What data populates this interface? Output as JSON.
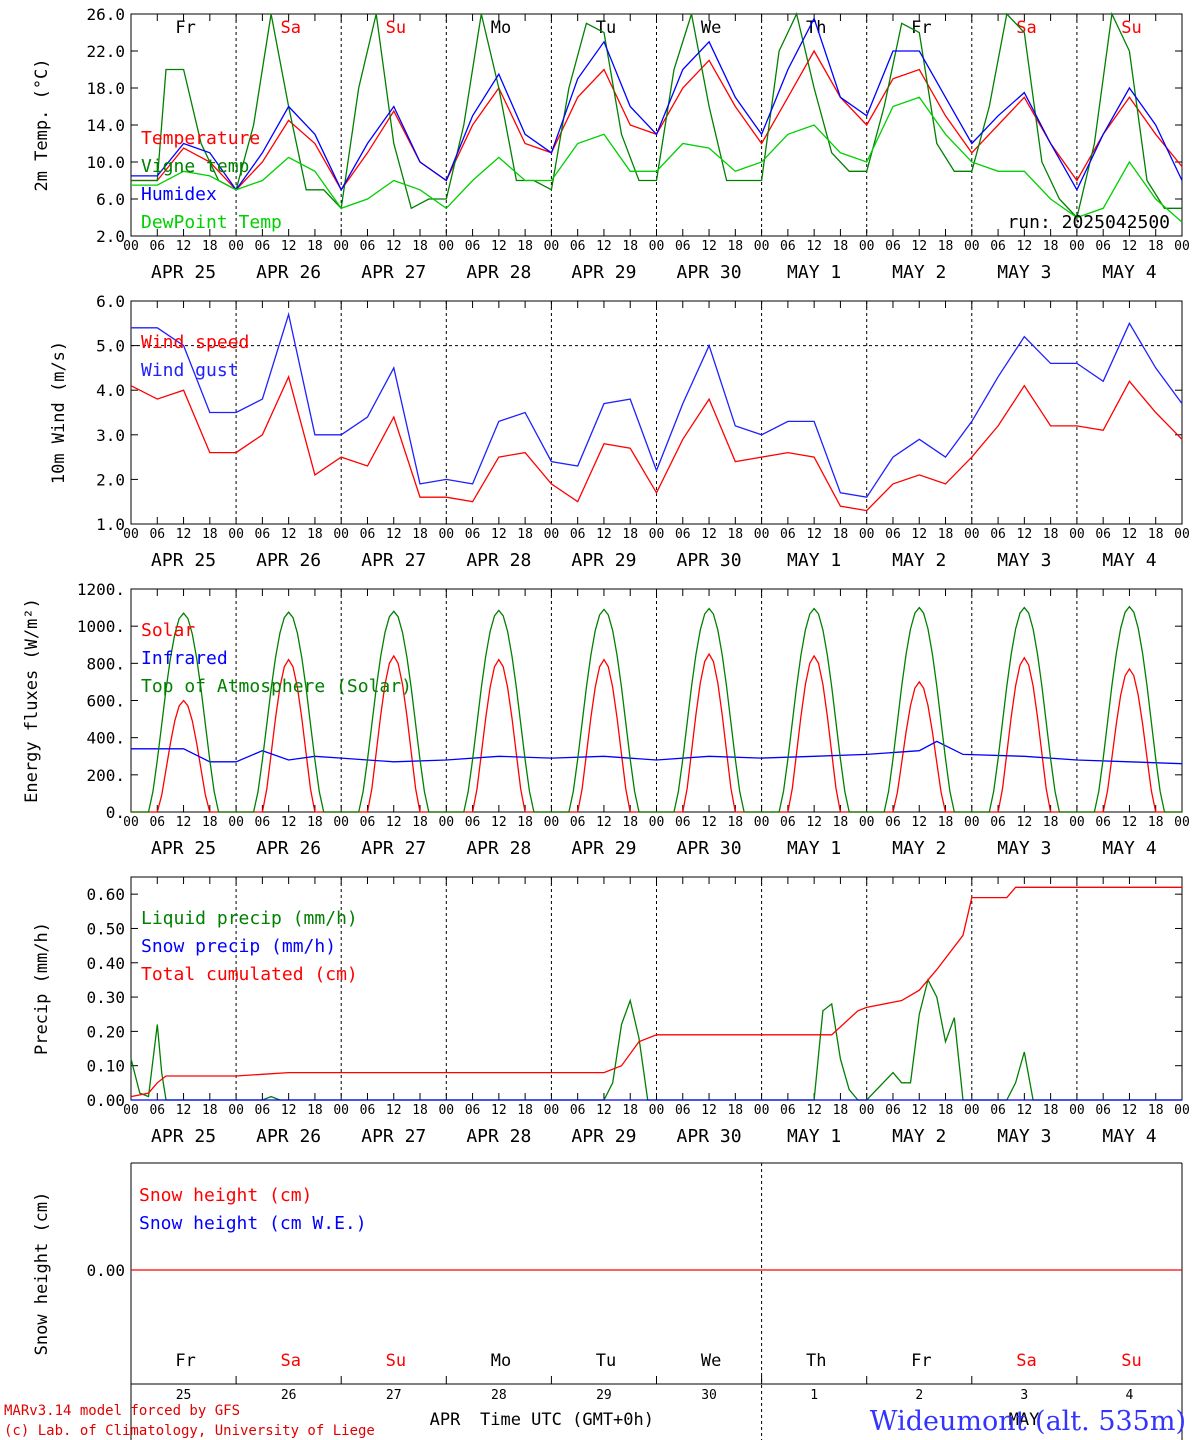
{
  "colors": {
    "red": "#ff0000",
    "green": "#008000",
    "blue": "#0000ff",
    "lightgreen": "#00d000",
    "wind_blue": "#2020ff",
    "site": "#3333ff"
  },
  "days": [
    "Fr",
    "Sa",
    "Su",
    "Mo",
    "Tu",
    "We",
    "Th",
    "Fr",
    "Sa",
    "Su"
  ],
  "weekend_days": [
    1,
    2,
    8,
    9
  ],
  "dates": [
    "APR 25",
    "APR 26",
    "APR 27",
    "APR 28",
    "APR 29",
    "APR 30",
    "MAY  1",
    "MAY  2",
    "MAY  3",
    "MAY  4"
  ],
  "hour_ticks": [
    "00",
    "06",
    "12",
    "18"
  ],
  "last_tick": "00",
  "bottom_day_numbers": [
    "25",
    "26",
    "27",
    "28",
    "29",
    "30",
    "1",
    "2",
    "3",
    "4"
  ],
  "bottom_months": {
    "left": "APR",
    "right": "MAY"
  },
  "footer": {
    "model": "MARv3.14 model forced by GFS",
    "credit": "(c) Lab. of Climatology, University of Liege",
    "xlabel": "Time UTC (GMT+0h)",
    "site": "Wideumont (alt. 535m)"
  },
  "chart_data": [
    {
      "type": "line",
      "ylabel": "2m Temp. (°C)",
      "ylim": [
        2.0,
        26.0
      ],
      "yticks": [
        "2.0",
        "6.0",
        "10.0",
        "14.0",
        "18.0",
        "22.0",
        "26.0"
      ],
      "annotation": "run: 2025042500",
      "x_unit": "hours since APR 25 00 UTC",
      "series": [
        {
          "name": "Temperature",
          "color": "red",
          "x": [
            0,
            6,
            12,
            18,
            24,
            30,
            36,
            42,
            48,
            54,
            60,
            66,
            72,
            78,
            84,
            90,
            96,
            102,
            108,
            114,
            120,
            126,
            132,
            138,
            144,
            150,
            156,
            162,
            168,
            174,
            180,
            186,
            192,
            198,
            204,
            210,
            216,
            222,
            228,
            234,
            240
          ],
          "y": [
            8,
            8,
            11.5,
            10,
            7,
            10,
            14.5,
            12,
            7,
            11,
            15.5,
            10,
            8,
            14,
            18,
            12,
            11,
            17,
            20,
            14,
            13,
            18,
            21,
            16,
            12,
            17,
            22,
            17,
            14,
            19,
            20,
            15,
            11,
            14,
            17,
            12,
            8,
            13,
            17,
            13,
            9.5
          ]
        },
        {
          "name": "Vigne temp",
          "color": "green",
          "x": [
            0,
            6,
            8,
            12,
            16,
            20,
            24,
            28,
            32,
            36,
            40,
            44,
            48,
            52,
            56,
            60,
            64,
            68,
            72,
            76,
            80,
            84,
            88,
            92,
            96,
            100,
            104,
            108,
            112,
            116,
            120,
            124,
            128,
            132,
            136,
            140,
            144,
            148,
            152,
            156,
            160,
            164,
            168,
            172,
            176,
            180,
            184,
            188,
            192,
            196,
            200,
            204,
            208,
            212,
            216,
            220,
            224,
            228,
            232,
            236,
            240
          ],
          "y": [
            8,
            8,
            20,
            20,
            12,
            8,
            7,
            14,
            26,
            16,
            7,
            7,
            5,
            18,
            26,
            12,
            5,
            6,
            6,
            14,
            26,
            18,
            8,
            8,
            7,
            18,
            25,
            24,
            13,
            8,
            8,
            20,
            26,
            16,
            8,
            8,
            8,
            22,
            26,
            18,
            11,
            9,
            9,
            16,
            25,
            24,
            12,
            9,
            9,
            16,
            26,
            24,
            10,
            6,
            4,
            12,
            26,
            22,
            8,
            5,
            5
          ]
        },
        {
          "name": "Humidex",
          "color": "blue",
          "x": [
            0,
            6,
            12,
            18,
            24,
            30,
            36,
            42,
            48,
            54,
            60,
            66,
            72,
            78,
            84,
            90,
            96,
            102,
            108,
            114,
            120,
            126,
            132,
            138,
            144,
            150,
            156,
            162,
            168,
            174,
            180,
            186,
            192,
            198,
            204,
            210,
            216,
            222,
            228,
            234,
            240
          ],
          "y": [
            8.5,
            8.5,
            12,
            11,
            7,
            11,
            16,
            13,
            7,
            12,
            16,
            10,
            8,
            15,
            19.5,
            13,
            11,
            19,
            23,
            16,
            13,
            20,
            23,
            17,
            13,
            20,
            25.5,
            17,
            15,
            22,
            22,
            17,
            12,
            15,
            17.5,
            12,
            7,
            13,
            18,
            14,
            8
          ]
        },
        {
          "name": "DewPoint Temp",
          "color": "lightgreen",
          "x": [
            0,
            6,
            12,
            18,
            24,
            30,
            36,
            42,
            48,
            54,
            60,
            66,
            72,
            78,
            84,
            90,
            96,
            102,
            108,
            114,
            120,
            126,
            132,
            138,
            144,
            150,
            156,
            162,
            168,
            174,
            180,
            186,
            192,
            198,
            204,
            210,
            216,
            222,
            228,
            234,
            240
          ],
          "y": [
            7.5,
            7.5,
            9,
            8.5,
            7,
            8,
            10.5,
            9,
            5,
            6,
            8,
            7,
            5,
            8,
            10.5,
            8,
            8,
            12,
            13,
            9,
            9,
            12,
            11.5,
            9,
            10,
            13,
            14,
            11,
            10,
            16,
            17,
            13,
            10,
            9,
            9,
            6,
            4,
            5,
            10,
            6,
            3.5
          ]
        }
      ]
    },
    {
      "type": "line",
      "ylabel": "10m Wind (m/s)",
      "ylim": [
        1.0,
        6.0
      ],
      "yticks": [
        "1.0",
        "2.0",
        "3.0",
        "4.0",
        "5.0",
        "6.0"
      ],
      "reference_line": 5.0,
      "series": [
        {
          "name": "Wind speed",
          "color": "red",
          "x": [
            0,
            6,
            12,
            18,
            24,
            30,
            36,
            42,
            48,
            54,
            60,
            66,
            72,
            78,
            84,
            90,
            96,
            102,
            108,
            114,
            120,
            126,
            132,
            138,
            144,
            150,
            156,
            162,
            168,
            174,
            180,
            186,
            192,
            198,
            204,
            210,
            216,
            222,
            228,
            234,
            240
          ],
          "y": [
            4.1,
            3.8,
            4.0,
            2.6,
            2.6,
            3.0,
            4.3,
            2.1,
            2.5,
            2.3,
            3.4,
            1.6,
            1.6,
            1.5,
            2.5,
            2.6,
            1.9,
            1.5,
            2.8,
            2.7,
            1.7,
            2.9,
            3.8,
            2.4,
            2.5,
            2.6,
            2.5,
            1.4,
            1.3,
            1.9,
            2.1,
            1.9,
            2.5,
            3.2,
            4.1,
            3.2,
            3.2,
            3.1,
            4.2,
            3.5,
            2.9
          ]
        },
        {
          "name": "Wind gust",
          "color": "wind_blue",
          "x": [
            0,
            6,
            12,
            18,
            24,
            30,
            36,
            42,
            48,
            54,
            60,
            66,
            72,
            78,
            84,
            90,
            96,
            102,
            108,
            114,
            120,
            126,
            132,
            138,
            144,
            150,
            156,
            162,
            168,
            174,
            180,
            186,
            192,
            198,
            204,
            210,
            216,
            222,
            228,
            234,
            240
          ],
          "y": [
            5.4,
            5.4,
            5.0,
            3.5,
            3.5,
            3.8,
            5.7,
            3.0,
            3.0,
            3.4,
            4.5,
            1.9,
            2.0,
            1.9,
            3.3,
            3.5,
            2.4,
            2.3,
            3.7,
            3.8,
            2.2,
            3.7,
            5.0,
            3.2,
            3.0,
            3.3,
            3.3,
            1.7,
            1.6,
            2.5,
            2.9,
            2.5,
            3.3,
            4.3,
            5.2,
            4.6,
            4.6,
            4.2,
            5.5,
            4.5,
            3.7
          ]
        }
      ]
    },
    {
      "type": "line",
      "ylabel": "Energy fluxes (W/m²)",
      "ylim": [
        0,
        1200
      ],
      "yticks": [
        "0.",
        "200.",
        "400.",
        "600.",
        "800.",
        "1000.",
        "1200."
      ],
      "series": [
        {
          "name": "Solar",
          "color": "red",
          "peaks": [
            600,
            820,
            840,
            820,
            820,
            850,
            840,
            700,
            830,
            770
          ],
          "shape": "diurnal"
        },
        {
          "name": "Infrared",
          "color": "blue",
          "x": [
            0,
            12,
            18,
            24,
            30,
            36,
            42,
            48,
            60,
            72,
            84,
            96,
            108,
            120,
            132,
            144,
            156,
            168,
            180,
            184,
            190,
            204,
            216,
            228,
            240
          ],
          "y": [
            340,
            340,
            270,
            270,
            330,
            280,
            300,
            290,
            270,
            280,
            300,
            290,
            300,
            280,
            300,
            290,
            300,
            310,
            330,
            380,
            310,
            300,
            280,
            270,
            260
          ]
        },
        {
          "name": "Top of Atmosphere (Solar)",
          "color": "green",
          "peaks": [
            1070,
            1075,
            1080,
            1085,
            1090,
            1095,
            1095,
            1100,
            1100,
            1105
          ],
          "shape": "diurnal"
        }
      ]
    },
    {
      "type": "line",
      "ylabel": "Precip (mm/h)",
      "ylim": [
        0.0,
        0.65
      ],
      "yticks": [
        "0.00",
        "0.10",
        "0.20",
        "0.30",
        "0.40",
        "0.50",
        "0.60"
      ],
      "series": [
        {
          "name": "Liquid precip (mm/h)",
          "color": "green",
          "x": [
            0,
            2,
            4,
            6,
            7,
            8,
            10,
            12,
            30,
            32,
            34,
            36,
            96,
            108,
            110,
            112,
            114,
            116,
            118,
            156,
            158,
            160,
            162,
            164,
            166,
            168,
            174,
            176,
            178,
            180,
            182,
            184,
            186,
            188,
            190,
            192,
            200,
            202,
            204,
            206,
            240
          ],
          "y": [
            0.12,
            0.02,
            0.01,
            0.22,
            0.08,
            0,
            0,
            0,
            0,
            0.01,
            0,
            0,
            0,
            0,
            0.05,
            0.22,
            0.29,
            0.18,
            0,
            0,
            0.26,
            0.28,
            0.12,
            0.03,
            0,
            0,
            0.08,
            0.05,
            0.05,
            0.25,
            0.35,
            0.3,
            0.17,
            0.24,
            0,
            0,
            0,
            0.05,
            0.14,
            0,
            0
          ]
        },
        {
          "name": "Snow precip (mm/h)",
          "color": "blue",
          "x": [
            0,
            240
          ],
          "y": [
            0,
            0
          ]
        },
        {
          "name": "Total cumulated (cm)",
          "color": "red",
          "x": [
            0,
            4,
            6,
            8,
            24,
            30,
            36,
            60,
            96,
            108,
            112,
            116,
            120,
            150,
            160,
            166,
            168,
            176,
            180,
            184,
            190,
            192,
            198,
            200,
            202,
            240
          ],
          "y": [
            0.01,
            0.02,
            0.05,
            0.07,
            0.07,
            0.075,
            0.08,
            0.08,
            0.08,
            0.08,
            0.1,
            0.17,
            0.19,
            0.19,
            0.19,
            0.26,
            0.27,
            0.29,
            0.32,
            0.38,
            0.48,
            0.59,
            0.59,
            0.59,
            0.62,
            0.62
          ]
        }
      ]
    },
    {
      "type": "line",
      "ylabel": "Snow height (cm)",
      "yticks": [
        "0.00"
      ],
      "series": [
        {
          "name": "Snow height (cm)",
          "color": "red",
          "x": [
            0,
            240
          ],
          "y": [
            0,
            0
          ]
        },
        {
          "name": "Snow height (cm W.E.)",
          "color": "blue",
          "x": [
            0,
            240
          ],
          "y": [
            0,
            0
          ]
        }
      ]
    }
  ]
}
